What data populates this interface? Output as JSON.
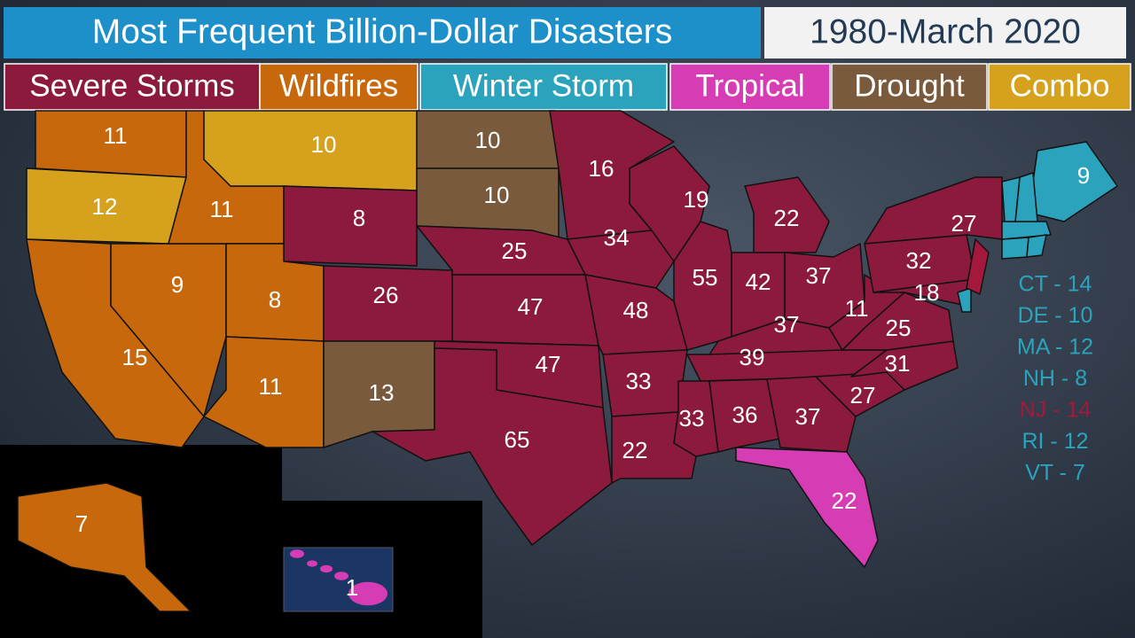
{
  "header": {
    "title": "Most Frequent Billion-Dollar Disasters",
    "date_range": "1980-March 2020"
  },
  "legend": [
    {
      "name": "Severe Storms",
      "color": "#8b1a3d"
    },
    {
      "name": "Wildfires",
      "color": "#c8680c"
    },
    {
      "name": "Winter Storm",
      "color": "#2ba3bd"
    },
    {
      "name": "Tropical",
      "color": "#d63cb4"
    },
    {
      "name": "Drought",
      "color": "#7a5a3c"
    },
    {
      "name": "Combo",
      "color": "#d6a11c"
    }
  ],
  "states": [
    {
      "value": 11,
      "category": "Wildfires"
    },
    {
      "value": 12,
      "category": "Combo"
    },
    {
      "value": 15,
      "category": "Wildfires"
    },
    {
      "value": 9,
      "category": "Wildfires"
    },
    {
      "value": 11,
      "category": "Wildfires"
    },
    {
      "value": 10,
      "category": "Combo"
    },
    {
      "value": 8,
      "category": "Severe Storms"
    },
    {
      "value": 8,
      "category": "Wildfires"
    },
    {
      "value": 26,
      "category": "Severe Storms"
    },
    {
      "value": 11,
      "category": "Wildfires"
    },
    {
      "value": 13,
      "category": "Drought"
    },
    {
      "value": 10,
      "category": "Drought"
    },
    {
      "value": 10,
      "category": "Drought"
    },
    {
      "value": 25,
      "category": "Severe Storms"
    },
    {
      "value": 47,
      "category": "Severe Storms"
    },
    {
      "value": 47,
      "category": "Severe Storms"
    },
    {
      "value": 65,
      "category": "Severe Storms"
    },
    {
      "value": 16,
      "category": "Severe Storms"
    },
    {
      "value": 34,
      "category": "Severe Storms"
    },
    {
      "value": 48,
      "category": "Severe Storms"
    },
    {
      "value": 33,
      "category": "Severe Storms"
    },
    {
      "value": 22,
      "category": "Severe Storms"
    },
    {
      "value": 19,
      "category": "Severe Storms"
    },
    {
      "value": 55,
      "category": "Severe Storms"
    },
    {
      "value": 22,
      "category": "Severe Storms"
    },
    {
      "value": 42,
      "category": "Severe Storms"
    },
    {
      "value": 37,
      "category": "Severe Storms"
    },
    {
      "value": 37,
      "category": "Severe Storms"
    },
    {
      "value": 39,
      "category": "Severe Storms"
    },
    {
      "value": 33,
      "category": "Severe Storms"
    },
    {
      "value": 36,
      "category": "Severe Storms"
    },
    {
      "value": 37,
      "category": "Severe Storms"
    },
    {
      "value": 22,
      "category": "Tropical"
    },
    {
      "value": 27,
      "category": "Severe Storms"
    },
    {
      "value": 31,
      "category": "Severe Storms"
    },
    {
      "value": 25,
      "category": "Severe Storms"
    },
    {
      "value": 11,
      "category": "Severe Storms"
    },
    {
      "value": 32,
      "category": "Severe Storms"
    },
    {
      "value": 27,
      "category": "Severe Storms"
    },
    {
      "value": 18,
      "category": "Severe Storms"
    },
    {
      "value": 9,
      "category": "Winter Storm"
    },
    {
      "value": 7,
      "category": "Wildfires"
    },
    {
      "value": 1,
      "category": "Tropical"
    }
  ],
  "small_states": [
    {
      "text": "CT - 14",
      "color": "#2ba3bd"
    },
    {
      "text": "DE - 10",
      "color": "#2ba3bd"
    },
    {
      "text": "MA - 12",
      "color": "#2ba3bd"
    },
    {
      "text": "NH - 8",
      "color": "#2ba3bd"
    },
    {
      "text": "NJ - 14",
      "color": "#a5183e"
    },
    {
      "text": "RI - 12",
      "color": "#2ba3bd"
    },
    {
      "text": "VT - 7",
      "color": "#2ba3bd"
    }
  ]
}
